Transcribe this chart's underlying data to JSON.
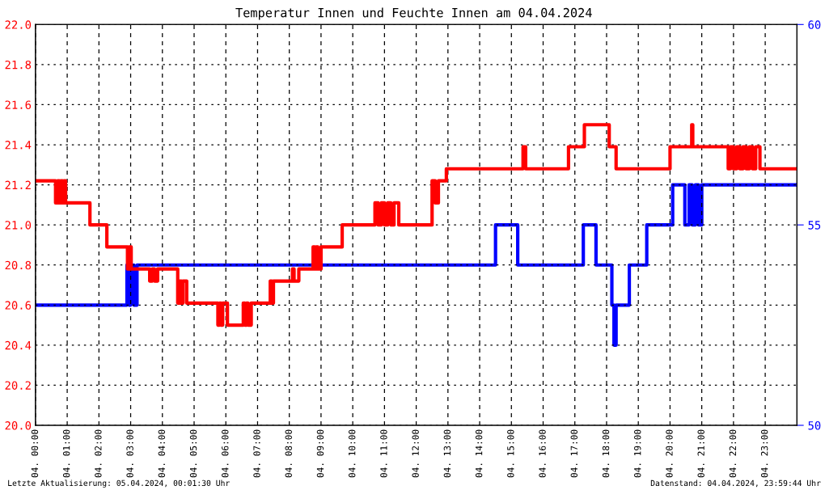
{
  "chart_data": {
    "type": "step",
    "title": "Temperatur Innen und Feuchte Innen am 04.04.2024",
    "annotations": [
      "Letzte Aktualisierung: 05.04.2024, 00:01:30 Uhr",
      "Datenstand: 04.04.2024, 23:59:44 Uhr"
    ],
    "series": [
      {
        "color": "#ff0000",
        "x": [
          "2024-04-04T00:00",
          "2024-04-04T00:38",
          "2024-04-04T00:42",
          "2024-04-04T00:45",
          "2024-04-04T00:48",
          "2024-04-04T00:51",
          "2024-04-04T00:54",
          "2024-04-04T00:57",
          "2024-04-04T01:43",
          "2024-04-04T02:15",
          "2024-04-04T02:54",
          "2024-04-04T02:57",
          "2024-04-04T03:01",
          "2024-04-04T03:36",
          "2024-04-04T03:41",
          "2024-04-04T03:45",
          "2024-04-04T03:51",
          "2024-04-04T04:29",
          "2024-04-04T04:33",
          "2024-04-04T04:36",
          "2024-04-04T04:39",
          "2024-04-04T04:46",
          "2024-04-04T05:45",
          "2024-04-04T05:48",
          "2024-04-04T05:51",
          "2024-04-04T05:54",
          "2024-04-04T06:03",
          "2024-04-04T06:33",
          "2024-04-04T06:36",
          "2024-04-04T06:39",
          "2024-04-04T06:42",
          "2024-04-04T06:48",
          "2024-04-04T07:24",
          "2024-04-04T07:27",
          "2024-04-04T07:30",
          "2024-04-04T07:33",
          "2024-04-04T08:06",
          "2024-04-04T08:09",
          "2024-04-04T08:18",
          "2024-04-04T08:45",
          "2024-04-04T08:48",
          "2024-04-04T08:51",
          "2024-04-04T08:54",
          "2024-04-04T09:00",
          "2024-04-04T09:40",
          "2024-04-04T10:42",
          "2024-04-04T10:48",
          "2024-04-04T10:54",
          "2024-04-04T11:00",
          "2024-04-04T11:06",
          "2024-04-04T11:12",
          "2024-04-04T11:18",
          "2024-04-04T11:27",
          "2024-04-04T12:30",
          "2024-04-04T12:36",
          "2024-04-04T12:42",
          "2024-04-04T12:57",
          "2024-04-04T15:22",
          "2024-04-04T15:27",
          "2024-04-04T16:48",
          "2024-04-04T17:18",
          "2024-04-04T18:05",
          "2024-04-04T18:18",
          "2024-04-04T20:00",
          "2024-04-04T20:41",
          "2024-04-04T20:43",
          "2024-04-04T21:50",
          "2024-04-04T21:54",
          "2024-04-04T22:00",
          "2024-04-04T22:06",
          "2024-04-04T22:12",
          "2024-04-04T22:18",
          "2024-04-04T22:24",
          "2024-04-04T22:30",
          "2024-04-04T22:36",
          "2024-04-04T22:42",
          "2024-04-04T22:50",
          "2024-04-04T23:59"
        ],
        "values": [
          21.22,
          21.11,
          21.22,
          21.11,
          21.22,
          21.11,
          21.22,
          21.11,
          21.0,
          20.89,
          20.78,
          20.89,
          20.78,
          20.72,
          20.78,
          20.72,
          20.78,
          20.61,
          20.72,
          20.61,
          20.72,
          20.61,
          20.5,
          20.61,
          20.5,
          20.61,
          20.5,
          20.61,
          20.5,
          20.61,
          20.5,
          20.61,
          20.72,
          20.61,
          20.72,
          20.72,
          20.78,
          20.72,
          20.78,
          20.89,
          20.78,
          20.89,
          20.78,
          20.89,
          21.0,
          21.11,
          21.0,
          21.11,
          21.0,
          21.11,
          21.0,
          21.11,
          21.0,
          21.22,
          21.11,
          21.22,
          21.28,
          21.39,
          21.28,
          21.39,
          21.5,
          21.39,
          21.28,
          21.39,
          21.5,
          21.39,
          21.28,
          21.39,
          21.28,
          21.39,
          21.28,
          21.39,
          21.28,
          21.39,
          21.28,
          21.39,
          21.28,
          21.28
        ]
      },
      {
        "color": "#0000ff",
        "axis": "y2",
        "x": [
          "2024-04-04T00:00",
          "2024-04-04T02:53",
          "2024-04-04T02:57",
          "2024-04-04T03:00",
          "2024-04-04T03:06",
          "2024-04-04T03:12",
          "2024-04-04T14:30",
          "2024-04-04T15:12",
          "2024-04-04T17:16",
          "2024-04-04T17:40",
          "2024-04-04T18:10",
          "2024-04-04T18:14",
          "2024-04-04T18:18",
          "2024-04-04T18:43",
          "2024-04-04T19:16",
          "2024-04-04T20:05",
          "2024-04-04T20:28",
          "2024-04-04T20:36",
          "2024-04-04T20:42",
          "2024-04-04T20:48",
          "2024-04-04T20:54",
          "2024-04-04T21:00",
          "2024-04-04T21:10",
          "2024-04-04T23:59"
        ],
        "values": [
          53,
          54,
          53,
          54,
          53,
          54,
          55,
          54,
          55,
          54,
          53,
          52,
          53,
          54,
          55,
          56,
          55,
          56,
          55,
          56,
          55,
          56,
          56,
          56
        ]
      }
    ],
    "xlim": [
      "2024-04-04T00:00",
      "2024-04-05T00:00"
    ],
    "xticks": [
      {
        "value": "2024-04-04T00:00",
        "label": "04. 00:00"
      },
      {
        "value": "2024-04-04T01:00",
        "label": "04. 01:00"
      },
      {
        "value": "2024-04-04T02:00",
        "label": "04. 02:00"
      },
      {
        "value": "2024-04-04T03:00",
        "label": "04. 03:00"
      },
      {
        "value": "2024-04-04T04:00",
        "label": "04. 04:00"
      },
      {
        "value": "2024-04-04T05:00",
        "label": "04. 05:00"
      },
      {
        "value": "2024-04-04T06:00",
        "label": "04. 06:00"
      },
      {
        "value": "2024-04-04T07:00",
        "label": "04. 07:00"
      },
      {
        "value": "2024-04-04T08:00",
        "label": "04. 08:00"
      },
      {
        "value": "2024-04-04T09:00",
        "label": "04. 09:00"
      },
      {
        "value": "2024-04-04T10:00",
        "label": "04. 10:00"
      },
      {
        "value": "2024-04-04T11:00",
        "label": "04. 11:00"
      },
      {
        "value": "2024-04-04T12:00",
        "label": "04. 12:00"
      },
      {
        "value": "2024-04-04T13:00",
        "label": "04. 13:00"
      },
      {
        "value": "2024-04-04T14:00",
        "label": "04. 14:00"
      },
      {
        "value": "2024-04-04T15:00",
        "label": "04. 15:00"
      },
      {
        "value": "2024-04-04T16:00",
        "label": "04. 16:00"
      },
      {
        "value": "2024-04-04T17:00",
        "label": "04. 17:00"
      },
      {
        "value": "2024-04-04T18:00",
        "label": "04. 18:00"
      },
      {
        "value": "2024-04-04T19:00",
        "label": "04. 19:00"
      },
      {
        "value": "2024-04-04T20:00",
        "label": "04. 20:00"
      },
      {
        "value": "2024-04-04T21:00",
        "label": "04. 21:00"
      },
      {
        "value": "2024-04-04T22:00",
        "label": "04. 22:00"
      },
      {
        "value": "2024-04-04T23:00",
        "label": "04. 23:00"
      }
    ],
    "ylim": [
      20,
      22
    ],
    "yticks": [
      {
        "value": 20,
        "label": "20.0"
      },
      {
        "value": 20.2,
        "label": "20.2"
      },
      {
        "value": 20.4,
        "label": "20.4"
      },
      {
        "value": 20.6,
        "label": "20.6"
      },
      {
        "value": 20.8,
        "label": "20.8"
      },
      {
        "value": 21,
        "label": "21.0"
      },
      {
        "value": 21.2,
        "label": "21.2"
      },
      {
        "value": 21.4,
        "label": "21.4"
      },
      {
        "value": 21.6,
        "label": "21.6"
      },
      {
        "value": 21.8,
        "label": "21.8"
      },
      {
        "value": 22,
        "label": "22.0"
      }
    ],
    "y2lim": [
      50,
      60
    ],
    "y2ticks": [
      50,
      55,
      60
    ],
    "grid": true,
    "line_style": "solid"
  }
}
